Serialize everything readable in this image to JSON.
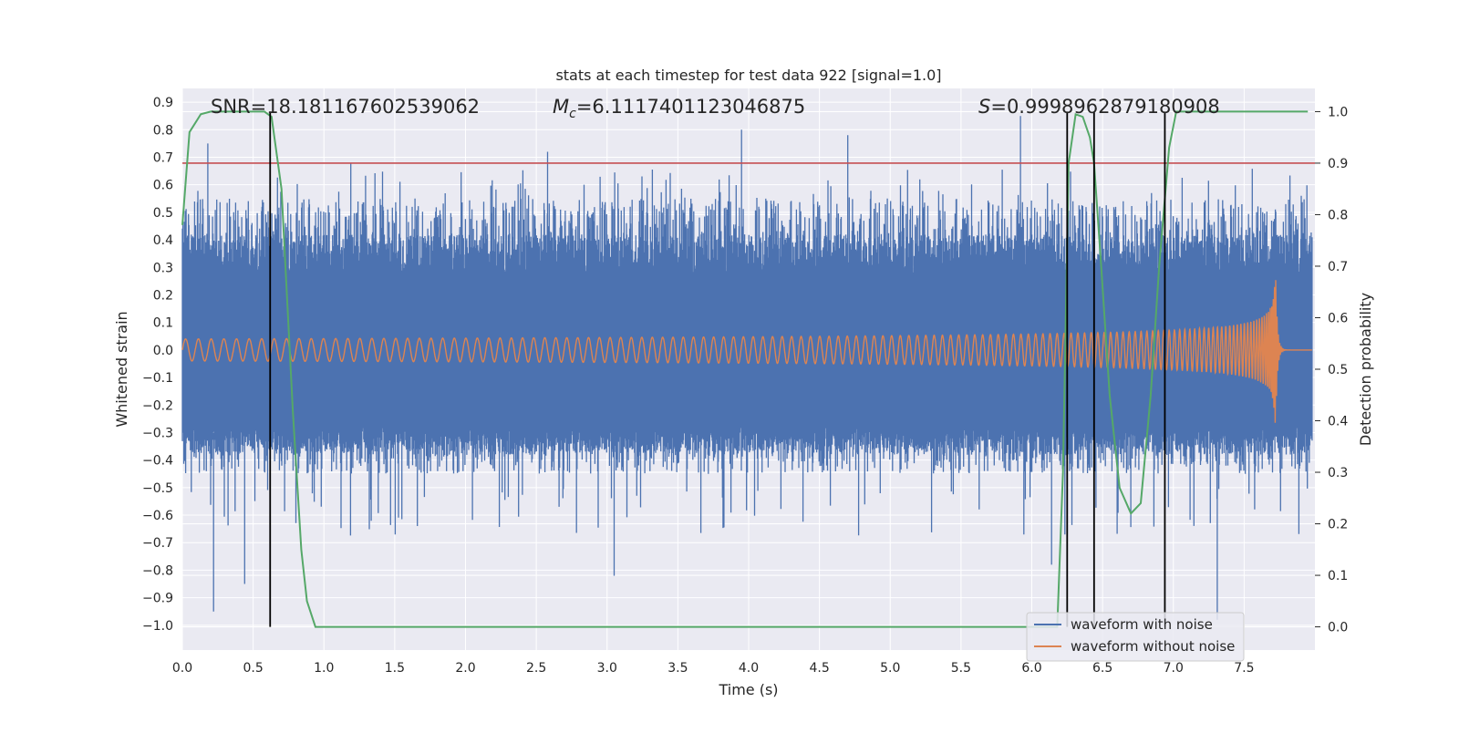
{
  "chart_data": {
    "type": "line",
    "title": "stats at each timestep for test data 922 [signal=1.0]",
    "xlabel": "Time (s)",
    "ylabel_left": "Whitened strain",
    "ylabel_right": "Detection probability",
    "xlim": [
      0.0,
      8.0
    ],
    "ylim_left": [
      -1.09,
      0.95
    ],
    "ylim_right": [
      -0.045,
      1.045
    ],
    "x_ticks": [
      "0.0",
      "0.5",
      "1.0",
      "1.5",
      "2.0",
      "2.5",
      "3.0",
      "3.5",
      "4.0",
      "4.5",
      "5.0",
      "5.5",
      "6.0",
      "6.5",
      "7.0",
      "7.5"
    ],
    "y_left_ticks": [
      "0.9",
      "0.8",
      "0.7",
      "0.6",
      "0.5",
      "0.4",
      "0.3",
      "0.2",
      "0.1",
      "0.0",
      "−0.1",
      "−0.2",
      "−0.3",
      "−0.4",
      "−0.5",
      "−0.6",
      "−0.7",
      "−0.8",
      "−0.9",
      "−1.0"
    ],
    "y_right_ticks": [
      "1.0",
      "0.9",
      "0.8",
      "0.7",
      "0.6",
      "0.5",
      "0.4",
      "0.3",
      "0.2",
      "0.1",
      "0.0"
    ],
    "grid": true,
    "legend_position": "lower-right",
    "annotations": {
      "snr": "SNR=18.181167602539062",
      "mc_symbol": "M",
      "mc_sub": "c",
      "mc_value": "=6.1117401123046875",
      "s_symbol": "S",
      "s_value": "=0.9998962879180908"
    },
    "threshold": {
      "value": 0.9,
      "axis": "right",
      "color": "#c44e52"
    },
    "detection_markers_x": [
      0.62,
      6.25,
      6.44,
      6.94
    ],
    "series": [
      {
        "name": "waveform with noise",
        "color": "#4c72b0",
        "axis": "left",
        "typical_envelope": [
          -0.45,
          0.55
        ],
        "extreme_peaks": [
          {
            "x": 0.22,
            "y": -0.95
          },
          {
            "x": 0.18,
            "y": 0.75
          },
          {
            "x": 0.44,
            "y": -0.85
          },
          {
            "x": 1.19,
            "y": 0.68
          },
          {
            "x": 2.58,
            "y": 0.72
          },
          {
            "x": 3.05,
            "y": -0.82
          },
          {
            "x": 3.95,
            "y": 0.8
          },
          {
            "x": 4.7,
            "y": 0.78
          },
          {
            "x": 5.92,
            "y": 0.85
          },
          {
            "x": 6.14,
            "y": -0.78
          },
          {
            "x": 7.31,
            "y": -0.98
          }
        ]
      },
      {
        "name": "waveform without noise",
        "color": "#dd8452",
        "axis": "left",
        "chirp_start_amplitude": 0.04,
        "chirp_peak_amplitude": 0.35,
        "merger_time": 7.72,
        "start_frequency_hz": 11,
        "end_frequency_hz": 110
      },
      {
        "name": "detection probability",
        "color": "#55a868",
        "axis": "right",
        "x": [
          0.0,
          0.05,
          0.13,
          0.2,
          0.3,
          0.4,
          0.5,
          0.58,
          0.63,
          0.7,
          0.78,
          0.84,
          0.88,
          0.94,
          1.0,
          2.0,
          3.0,
          4.0,
          5.0,
          6.0,
          6.18,
          6.22,
          6.26,
          6.31,
          6.36,
          6.41,
          6.44,
          6.49,
          6.55,
          6.62,
          6.7,
          6.77,
          6.84,
          6.9,
          6.97,
          7.02,
          7.08,
          7.2,
          7.5,
          7.95
        ],
        "y": [
          0.78,
          0.96,
          0.995,
          1.0,
          1.0,
          1.0,
          1.0,
          1.0,
          0.99,
          0.85,
          0.42,
          0.15,
          0.05,
          0.0,
          0.0,
          0.0,
          0.0,
          0.0,
          0.0,
          0.0,
          0.0,
          0.3,
          0.9,
          0.995,
          0.99,
          0.95,
          0.9,
          0.7,
          0.45,
          0.27,
          0.22,
          0.24,
          0.45,
          0.7,
          0.93,
          1.0,
          1.0,
          1.0,
          1.0,
          1.0
        ]
      }
    ]
  }
}
